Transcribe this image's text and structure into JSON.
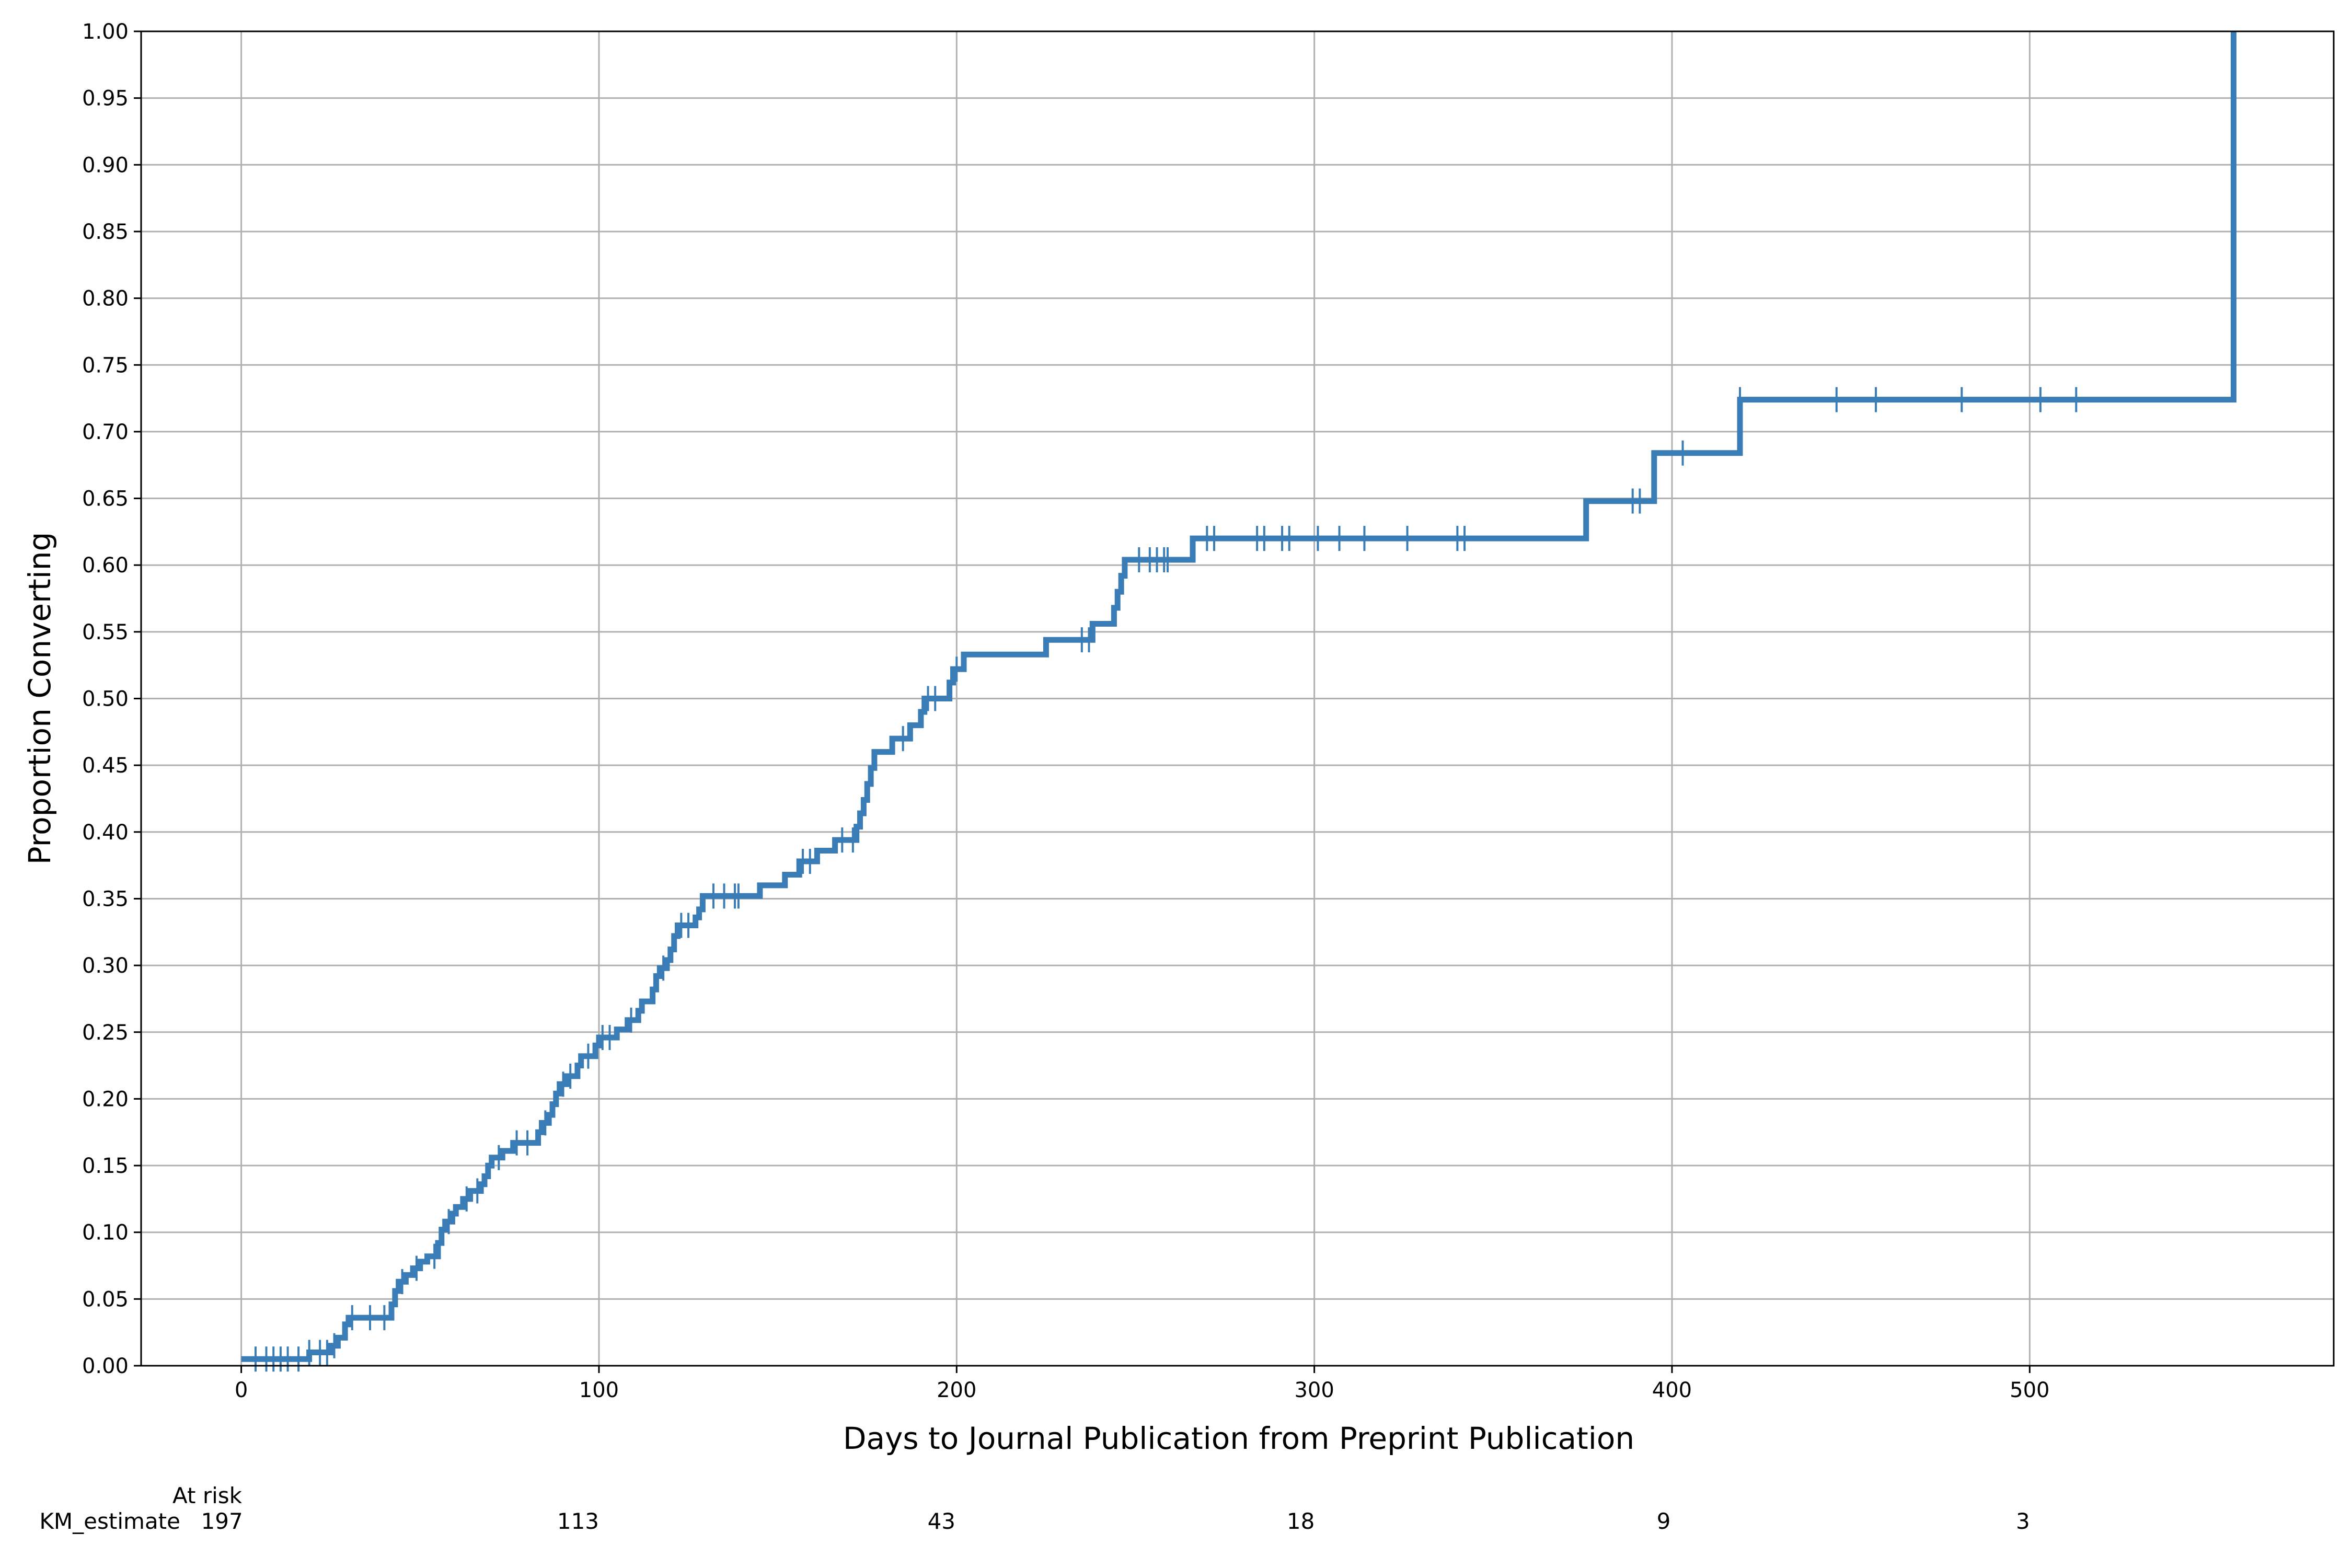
{
  "chart_data": {
    "type": "line",
    "step": true,
    "xlabel": "Days to Journal Publication from Preprint Publication",
    "ylabel": "Proportion Converting",
    "xlim": [
      -28,
      585
    ],
    "ylim": [
      0,
      1
    ],
    "x_ticks": [
      0,
      100,
      200,
      300,
      400,
      500
    ],
    "x_tick_labels": [
      "0",
      "100",
      "200",
      "300",
      "400",
      "500"
    ],
    "y_ticks": [
      0,
      0.05,
      0.1,
      0.15,
      0.2,
      0.25,
      0.3,
      0.35,
      0.4,
      0.45,
      0.5,
      0.55,
      0.6,
      0.65,
      0.7,
      0.75,
      0.8,
      0.85,
      0.9,
      0.95,
      1.0
    ],
    "y_tick_labels": [
      "0.00",
      "0.05",
      "0.10",
      "0.15",
      "0.20",
      "0.25",
      "0.30",
      "0.35",
      "0.40",
      "0.45",
      "0.50",
      "0.55",
      "0.60",
      "0.65",
      "0.70",
      "0.75",
      "0.80",
      "0.85",
      "0.90",
      "0.95",
      "1.00"
    ],
    "grid": true,
    "color": "#3a7cb6",
    "series": [
      {
        "step_points": [
          [
            0,
            0.005
          ],
          [
            19,
            0.005
          ],
          [
            19,
            0.01
          ],
          [
            25,
            0.01
          ],
          [
            25,
            0.015
          ],
          [
            27,
            0.015
          ],
          [
            27,
            0.021
          ],
          [
            29,
            0.021
          ],
          [
            29,
            0.031
          ],
          [
            30,
            0.031
          ],
          [
            30,
            0.036
          ],
          [
            42,
            0.036
          ],
          [
            42,
            0.046
          ],
          [
            43,
            0.046
          ],
          [
            43,
            0.056
          ],
          [
            44,
            0.056
          ],
          [
            44,
            0.063
          ],
          [
            46,
            0.063
          ],
          [
            46,
            0.068
          ],
          [
            48,
            0.068
          ],
          [
            48,
            0.073
          ],
          [
            50,
            0.073
          ],
          [
            50,
            0.078
          ],
          [
            52,
            0.078
          ],
          [
            52,
            0.082
          ],
          [
            55,
            0.082
          ],
          [
            55,
            0.092
          ],
          [
            56,
            0.092
          ],
          [
            56,
            0.102
          ],
          [
            57,
            0.102
          ],
          [
            57,
            0.108
          ],
          [
            59,
            0.108
          ],
          [
            59,
            0.114
          ],
          [
            60,
            0.114
          ],
          [
            60,
            0.119
          ],
          [
            62,
            0.119
          ],
          [
            62,
            0.125
          ],
          [
            64,
            0.125
          ],
          [
            64,
            0.131
          ],
          [
            67,
            0.131
          ],
          [
            67,
            0.136
          ],
          [
            68,
            0.136
          ],
          [
            68,
            0.142
          ],
          [
            69,
            0.142
          ],
          [
            69,
            0.15
          ],
          [
            70,
            0.15
          ],
          [
            70,
            0.156
          ],
          [
            73,
            0.156
          ],
          [
            73,
            0.161
          ],
          [
            76,
            0.161
          ],
          [
            76,
            0.167
          ],
          [
            83,
            0.167
          ],
          [
            83,
            0.175
          ],
          [
            84,
            0.175
          ],
          [
            84,
            0.182
          ],
          [
            86,
            0.182
          ],
          [
            86,
            0.188
          ],
          [
            87,
            0.188
          ],
          [
            87,
            0.196
          ],
          [
            88,
            0.196
          ],
          [
            88,
            0.204
          ],
          [
            89,
            0.204
          ],
          [
            89,
            0.211
          ],
          [
            91,
            0.211
          ],
          [
            91,
            0.217
          ],
          [
            94,
            0.217
          ],
          [
            94,
            0.225
          ],
          [
            95,
            0.225
          ],
          [
            95,
            0.232
          ],
          [
            99,
            0.232
          ],
          [
            99,
            0.24
          ],
          [
            100,
            0.24
          ],
          [
            100,
            0.246
          ],
          [
            105,
            0.246
          ],
          [
            105,
            0.252
          ],
          [
            108,
            0.252
          ],
          [
            108,
            0.259
          ],
          [
            111,
            0.259
          ],
          [
            111,
            0.266
          ],
          [
            112,
            0.266
          ],
          [
            112,
            0.273
          ],
          [
            115,
            0.273
          ],
          [
            115,
            0.282
          ],
          [
            116,
            0.282
          ],
          [
            116,
            0.292
          ],
          [
            117,
            0.292
          ],
          [
            117,
            0.298
          ],
          [
            119,
            0.298
          ],
          [
            119,
            0.304
          ],
          [
            120,
            0.304
          ],
          [
            120,
            0.312
          ],
          [
            121,
            0.312
          ],
          [
            121,
            0.322
          ],
          [
            122,
            0.322
          ],
          [
            122,
            0.33
          ],
          [
            127,
            0.33
          ],
          [
            127,
            0.336
          ],
          [
            128,
            0.336
          ],
          [
            128,
            0.342
          ],
          [
            129,
            0.342
          ],
          [
            129,
            0.352
          ],
          [
            145,
            0.352
          ],
          [
            145,
            0.36
          ],
          [
            152,
            0.36
          ],
          [
            152,
            0.368
          ],
          [
            156,
            0.368
          ],
          [
            156,
            0.378
          ],
          [
            161,
            0.378
          ],
          [
            161,
            0.386
          ],
          [
            166,
            0.386
          ],
          [
            166,
            0.394
          ],
          [
            172,
            0.394
          ],
          [
            172,
            0.404
          ],
          [
            173,
            0.404
          ],
          [
            173,
            0.414
          ],
          [
            174,
            0.414
          ],
          [
            174,
            0.424
          ],
          [
            175,
            0.424
          ],
          [
            175,
            0.436
          ],
          [
            176,
            0.436
          ],
          [
            176,
            0.448
          ],
          [
            177,
            0.448
          ],
          [
            177,
            0.46
          ],
          [
            182,
            0.46
          ],
          [
            182,
            0.47
          ],
          [
            187,
            0.47
          ],
          [
            187,
            0.48
          ],
          [
            190,
            0.48
          ],
          [
            190,
            0.49
          ],
          [
            191,
            0.49
          ],
          [
            191,
            0.5
          ],
          [
            198,
            0.5
          ],
          [
            198,
            0.512
          ],
          [
            199,
            0.512
          ],
          [
            199,
            0.522
          ],
          [
            202,
            0.522
          ],
          [
            202,
            0.533
          ],
          [
            225,
            0.533
          ],
          [
            225,
            0.544
          ],
          [
            238,
            0.544
          ],
          [
            238,
            0.556
          ],
          [
            244,
            0.556
          ],
          [
            244,
            0.568
          ],
          [
            245,
            0.568
          ],
          [
            245,
            0.58
          ],
          [
            246,
            0.58
          ],
          [
            246,
            0.592
          ],
          [
            247,
            0.592
          ],
          [
            247,
            0.604
          ],
          [
            266,
            0.604
          ],
          [
            266,
            0.62
          ],
          [
            376,
            0.62
          ],
          [
            376,
            0.648
          ],
          [
            395,
            0.648
          ],
          [
            395,
            0.684
          ],
          [
            419,
            0.684
          ],
          [
            419,
            0.724
          ],
          [
            557,
            0.724
          ],
          [
            557,
            1.0
          ]
        ],
        "censored": [
          [
            4,
            0.005
          ],
          [
            7,
            0.005
          ],
          [
            9,
            0.005
          ],
          [
            11,
            0.005
          ],
          [
            13,
            0.005
          ],
          [
            16,
            0.005
          ],
          [
            19,
            0.01
          ],
          [
            22,
            0.01
          ],
          [
            24,
            0.01
          ],
          [
            26,
            0.015
          ],
          [
            31,
            0.036
          ],
          [
            36,
            0.036
          ],
          [
            40,
            0.036
          ],
          [
            45,
            0.063
          ],
          [
            49,
            0.073
          ],
          [
            54,
            0.082
          ],
          [
            58,
            0.108
          ],
          [
            63,
            0.125
          ],
          [
            66,
            0.131
          ],
          [
            72,
            0.156
          ],
          [
            77,
            0.167
          ],
          [
            80,
            0.167
          ],
          [
            85,
            0.182
          ],
          [
            90,
            0.211
          ],
          [
            92,
            0.217
          ],
          [
            97,
            0.232
          ],
          [
            101,
            0.246
          ],
          [
            103,
            0.246
          ],
          [
            109,
            0.259
          ],
          [
            118,
            0.298
          ],
          [
            123,
            0.33
          ],
          [
            125,
            0.33
          ],
          [
            132,
            0.352
          ],
          [
            135,
            0.352
          ],
          [
            138,
            0.352
          ],
          [
            139,
            0.352
          ],
          [
            157,
            0.378
          ],
          [
            159,
            0.378
          ],
          [
            168,
            0.394
          ],
          [
            171,
            0.394
          ],
          [
            185,
            0.47
          ],
          [
            192,
            0.5
          ],
          [
            194,
            0.5
          ],
          [
            200,
            0.522
          ],
          [
            235,
            0.544
          ],
          [
            237,
            0.544
          ],
          [
            251,
            0.604
          ],
          [
            254,
            0.604
          ],
          [
            256,
            0.604
          ],
          [
            258,
            0.604
          ],
          [
            259,
            0.604
          ],
          [
            270,
            0.62
          ],
          [
            272,
            0.62
          ],
          [
            284,
            0.62
          ],
          [
            286,
            0.62
          ],
          [
            291,
            0.62
          ],
          [
            293,
            0.62
          ],
          [
            301,
            0.62
          ],
          [
            307,
            0.62
          ],
          [
            314,
            0.62
          ],
          [
            326,
            0.62
          ],
          [
            340,
            0.62
          ],
          [
            342,
            0.62
          ],
          [
            389,
            0.648
          ],
          [
            391,
            0.648
          ],
          [
            403,
            0.684
          ],
          [
            419,
            0.724
          ],
          [
            446,
            0.724
          ],
          [
            457,
            0.724
          ],
          [
            481,
            0.724
          ],
          [
            503,
            0.724
          ],
          [
            513,
            0.724
          ]
        ]
      }
    ],
    "at_risk": {
      "header": "At risk",
      "row_label": "KM_estimate",
      "x": [
        0,
        100,
        200,
        300,
        400,
        500
      ],
      "counts": [
        "197",
        "113",
        "43",
        "18",
        "9",
        "3"
      ]
    }
  }
}
